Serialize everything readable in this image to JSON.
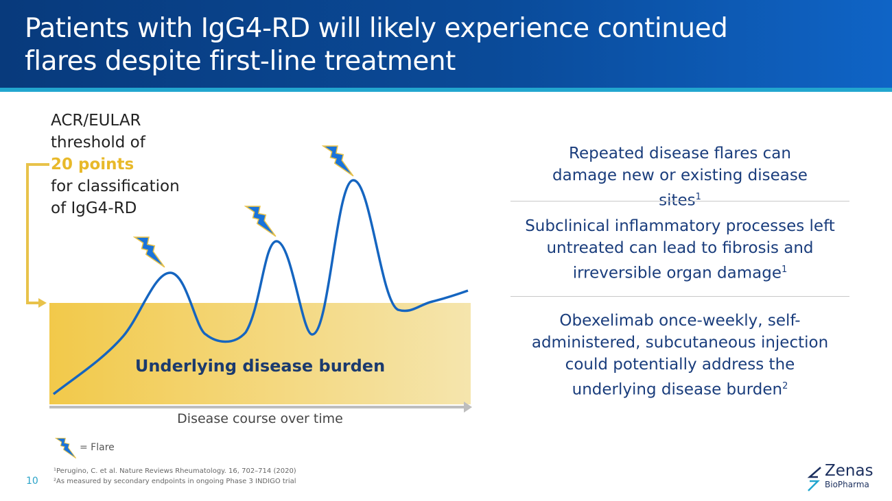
{
  "header": {
    "title_line1": "Patients with IgG4-RD will likely experience continued",
    "title_line2": "flares despite first-line treatment"
  },
  "threshold": {
    "line1": "ACR/EULAR",
    "line2": "threshold of",
    "highlight": "20 points",
    "line3": "for classification",
    "line4": "of IgG4-RD"
  },
  "diagram": {
    "burden_label": "Underlying disease burden",
    "x_axis_label": "Disease course over time",
    "legend_label": "= Flare",
    "flare_icon": "lightning-bolt-icon"
  },
  "points": [
    {
      "text": "Repeated disease flares can damage new or existing disease sites",
      "ref": "1"
    },
    {
      "text": "Subclinical inflammatory processes left untreated can lead to fibrosis and irreversible organ damage",
      "ref": "1"
    },
    {
      "text": "Obexelimab once-weekly, self-administered, subcutaneous injection could potentially address the underlying disease burden",
      "ref": "2"
    }
  ],
  "footnotes": {
    "f1": "¹Perugino, C. et al. Nature Reviews Rheumatology. 16, 702–714 (2020)",
    "f2": "²As measured by secondary endpoints in ongoing Phase 3 INDIGO trial"
  },
  "page_number": "10",
  "logo": {
    "name": "Zenas",
    "sub": "BioPharma"
  },
  "colors": {
    "header": "#083a7c",
    "accent": "#22a6cf",
    "highlight": "#e8b92a",
    "text_blue": "#1a3d7c",
    "curve": "#1565c0"
  }
}
